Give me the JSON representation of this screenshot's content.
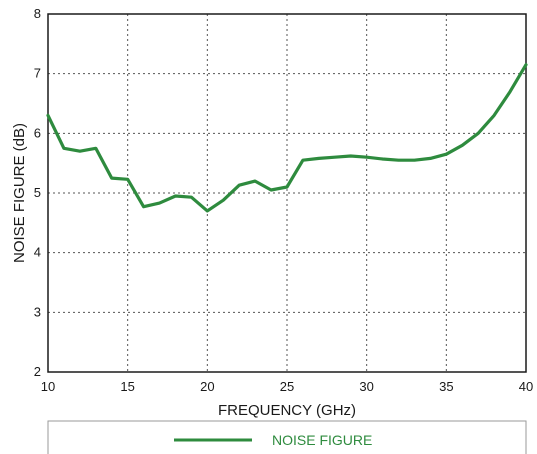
{
  "chart_data": {
    "type": "line",
    "xlabel": "FREQUENCY (GHz)",
    "ylabel": "NOISE FIGURE (dB)",
    "xlim": [
      10,
      40
    ],
    "ylim": [
      2,
      8
    ],
    "x_ticks": [
      "10",
      "15",
      "20",
      "25",
      "30",
      "35",
      "40"
    ],
    "y_ticks": [
      "2",
      "3",
      "4",
      "5",
      "6",
      "7",
      "8"
    ],
    "grid": true,
    "legend_position": "bottom",
    "series": [
      {
        "name": "NOISE FIGURE",
        "color": "#2e8b3e",
        "x": [
          10,
          11,
          12,
          13,
          14,
          15,
          16,
          17,
          18,
          19,
          20,
          21,
          22,
          23,
          24,
          25,
          26,
          27,
          28,
          29,
          30,
          31,
          32,
          33,
          34,
          35,
          36,
          37,
          38,
          39,
          40
        ],
        "y": [
          6.3,
          5.75,
          5.7,
          5.75,
          5.25,
          5.23,
          4.77,
          4.83,
          4.95,
          4.93,
          4.7,
          4.88,
          5.13,
          5.2,
          5.05,
          5.1,
          5.55,
          5.58,
          5.6,
          5.62,
          5.6,
          5.57,
          5.55,
          5.55,
          5.58,
          5.65,
          5.8,
          6.0,
          6.3,
          6.7,
          7.15
        ]
      }
    ]
  }
}
